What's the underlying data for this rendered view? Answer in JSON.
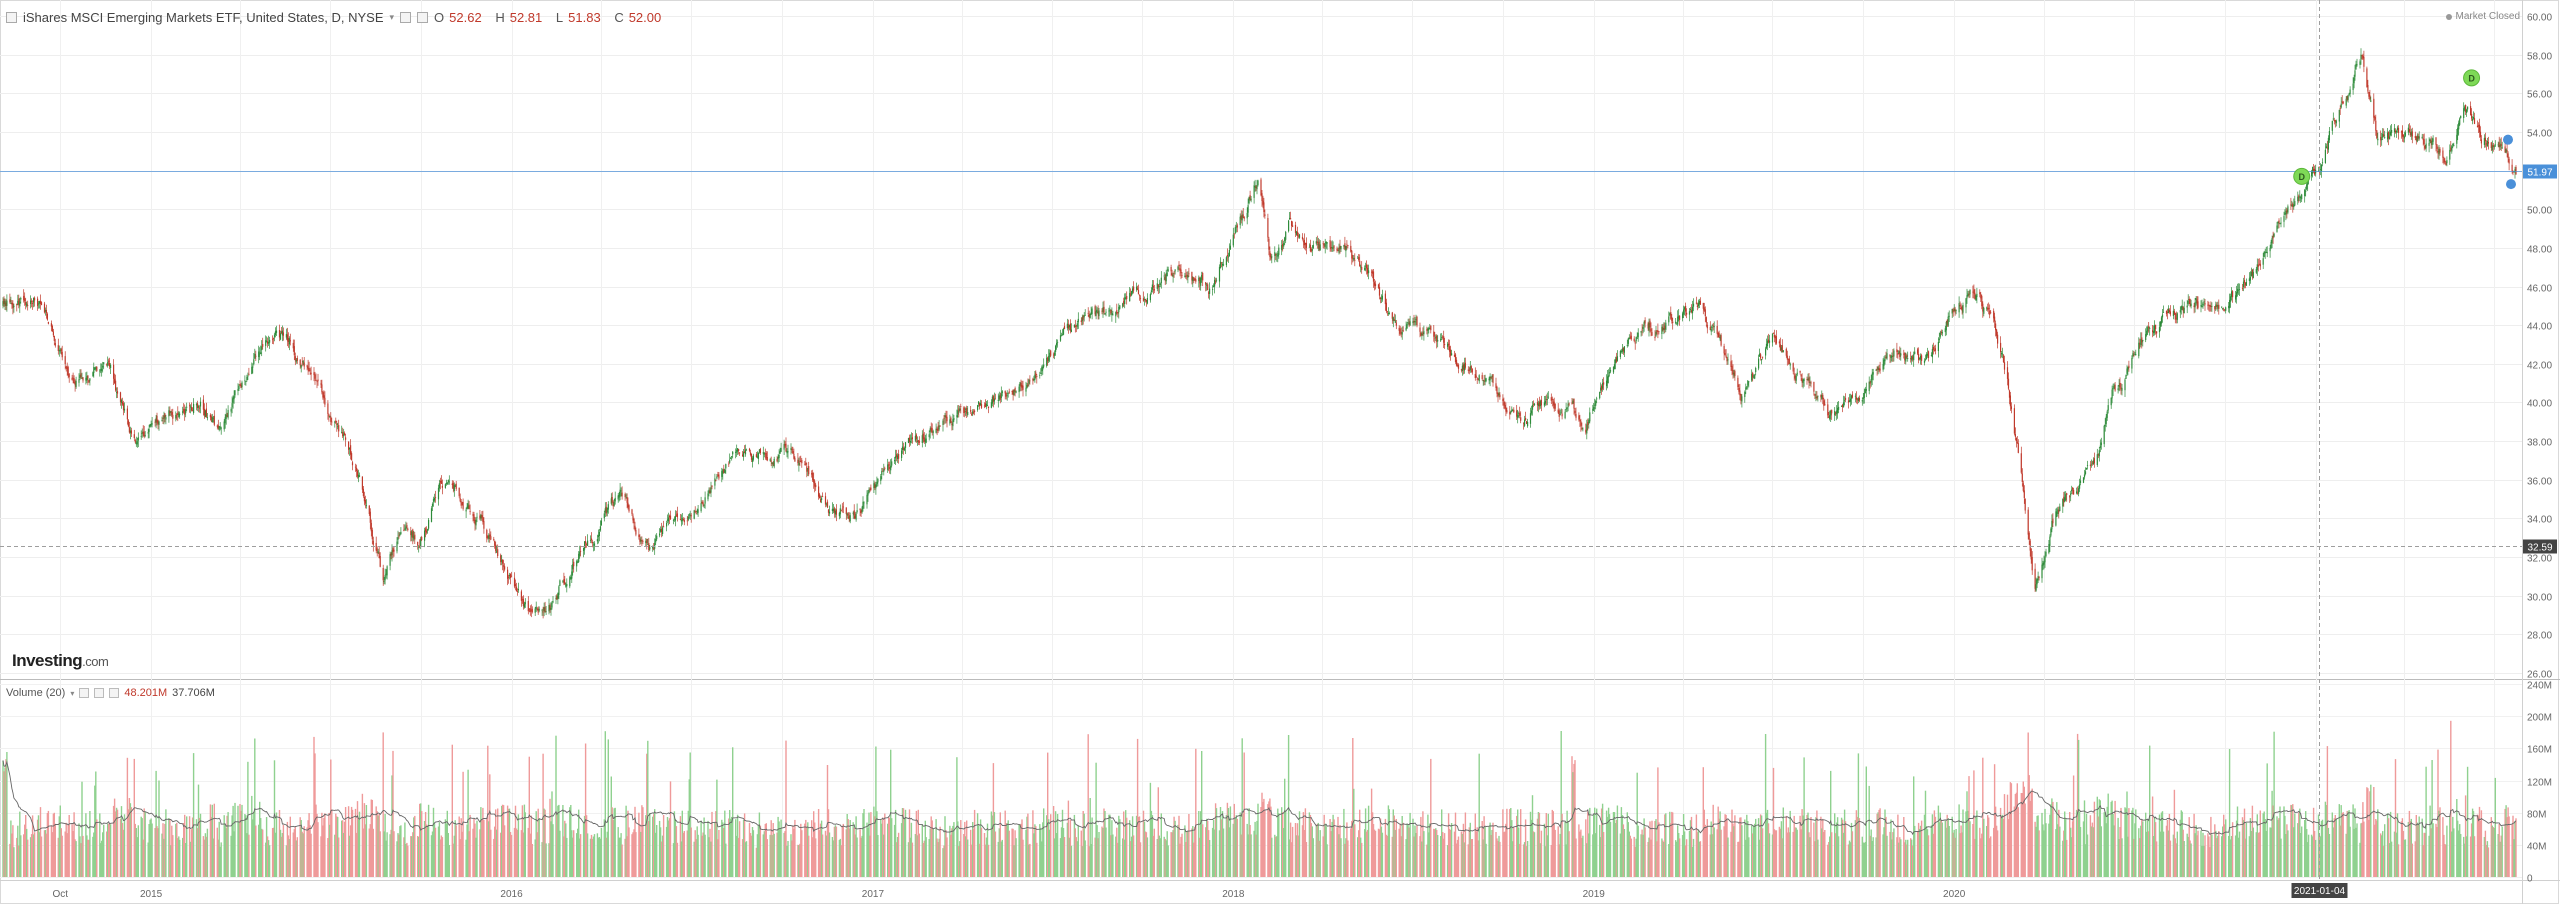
{
  "header": {
    "symbol_title": "iShares MSCI Emerging Markets ETF, United States, D, NYSE",
    "ohlc": [
      {
        "label": "O",
        "value": "52.62"
      },
      {
        "label": "H",
        "value": "52.81"
      },
      {
        "label": "L",
        "value": "51.83"
      },
      {
        "label": "C",
        "value": "52.00"
      }
    ],
    "market_status": "Market Closed"
  },
  "brand": {
    "name": "Investing",
    "suffix": ".com"
  },
  "volume_legend": {
    "label": "Volume (20)",
    "value1": "48.201M",
    "value2": "37.706M"
  },
  "price_labels": {
    "last_price": "51.97",
    "crosshair_price": "32.59",
    "crosshair_date": "2021-01-04"
  },
  "colors": {
    "up": "#2e8b3a",
    "down": "#c0392b",
    "volume_up": "#8fd18f",
    "volume_down": "#ef9a9a",
    "price_tag": "#4a90d9",
    "marker_d": "#7ed957"
  },
  "chart_data": {
    "type": "candlestick",
    "title": "iShares MSCI Emerging Markets ETF, United States, D, NYSE",
    "price_axis": {
      "min": 26,
      "max": 60,
      "ticks": [
        "26.00",
        "28.00",
        "30.00",
        "32.00",
        "34.00",
        "36.00",
        "38.00",
        "40.00",
        "42.00",
        "44.00",
        "46.00",
        "48.00",
        "50.00",
        "52.00",
        "54.00",
        "56.00",
        "58.00",
        "60.00"
      ]
    },
    "volume_axis": {
      "min": 0,
      "max": 240,
      "unit": "M",
      "ticks": [
        "0",
        "40M",
        "80M",
        "120M",
        "160M",
        "200M",
        "240M"
      ]
    },
    "x_labels": [
      {
        "label": "Oct",
        "date": "2014-10-01"
      },
      {
        "label": "2015",
        "date": "2015-01-01"
      },
      {
        "label": "2016",
        "date": "2016-01-01"
      },
      {
        "label": "2017",
        "date": "2017-01-01"
      },
      {
        "label": "2018",
        "date": "2018-01-01"
      },
      {
        "label": "2019",
        "date": "2019-01-01"
      },
      {
        "label": "2020",
        "date": "2020-01-01"
      }
    ],
    "date_range": [
      "2014-08-04",
      "2021-07-23"
    ],
    "price_path": [
      {
        "date": "2014-08-04",
        "close": 45.0
      },
      {
        "date": "2014-09-05",
        "close": 45.5
      },
      {
        "date": "2014-10-15",
        "close": 41.2
      },
      {
        "date": "2014-11-20",
        "close": 42.0
      },
      {
        "date": "2014-12-16",
        "close": 37.8
      },
      {
        "date": "2015-01-20",
        "close": 39.5
      },
      {
        "date": "2015-02-20",
        "close": 40.3
      },
      {
        "date": "2015-03-12",
        "close": 38.3
      },
      {
        "date": "2015-04-27",
        "close": 43.6
      },
      {
        "date": "2015-05-25",
        "close": 42.8
      },
      {
        "date": "2015-06-25",
        "close": 40.2
      },
      {
        "date": "2015-07-27",
        "close": 36.9
      },
      {
        "date": "2015-08-24",
        "close": 31.3
      },
      {
        "date": "2015-09-07",
        "close": 33.0
      },
      {
        "date": "2015-09-28",
        "close": 32.5
      },
      {
        "date": "2015-10-22",
        "close": 35.9
      },
      {
        "date": "2015-11-20",
        "close": 34.8
      },
      {
        "date": "2015-12-14",
        "close": 32.8
      },
      {
        "date": "2016-01-21",
        "close": 28.5
      },
      {
        "date": "2016-02-12",
        "close": 29.5
      },
      {
        "date": "2016-03-15",
        "close": 32.8
      },
      {
        "date": "2016-04-20",
        "close": 35.0
      },
      {
        "date": "2016-05-20",
        "close": 32.6
      },
      {
        "date": "2016-06-24",
        "close": 34.3
      },
      {
        "date": "2016-07-25",
        "close": 36.0
      },
      {
        "date": "2016-08-20",
        "close": 37.3
      },
      {
        "date": "2016-09-20",
        "close": 37.2
      },
      {
        "date": "2016-10-20",
        "close": 37.2
      },
      {
        "date": "2016-11-15",
        "close": 34.6
      },
      {
        "date": "2016-12-20",
        "close": 34.1
      },
      {
        "date": "2017-01-20",
        "close": 36.9
      },
      {
        "date": "2017-03-01",
        "close": 38.9
      },
      {
        "date": "2017-04-10",
        "close": 39.2
      },
      {
        "date": "2017-05-15",
        "close": 40.6
      },
      {
        "date": "2017-06-15",
        "close": 41.2
      },
      {
        "date": "2017-07-15",
        "close": 43.5
      },
      {
        "date": "2017-08-15",
        "close": 44.2
      },
      {
        "date": "2017-09-15",
        "close": 45.6
      },
      {
        "date": "2017-10-15",
        "close": 46.3
      },
      {
        "date": "2017-11-15",
        "close": 46.5
      },
      {
        "date": "2017-12-10",
        "close": 46.0
      },
      {
        "date": "2018-01-26",
        "close": 51.8
      },
      {
        "date": "2018-02-08",
        "close": 47.3
      },
      {
        "date": "2018-02-26",
        "close": 49.5
      },
      {
        "date": "2018-03-20",
        "close": 48.2
      },
      {
        "date": "2018-04-16",
        "close": 48.1
      },
      {
        "date": "2018-05-15",
        "close": 46.8
      },
      {
        "date": "2018-06-15",
        "close": 44.0
      },
      {
        "date": "2018-07-15",
        "close": 43.5
      },
      {
        "date": "2018-08-15",
        "close": 42.4
      },
      {
        "date": "2018-09-10",
        "close": 41.6
      },
      {
        "date": "2018-10-25",
        "close": 39.3
      },
      {
        "date": "2018-11-15",
        "close": 40.5
      },
      {
        "date": "2018-12-24",
        "close": 38.9
      },
      {
        "date": "2019-02-05",
        "close": 43.5
      },
      {
        "date": "2019-04-17",
        "close": 44.8
      },
      {
        "date": "2019-05-30",
        "close": 40.4
      },
      {
        "date": "2019-07-03",
        "close": 43.3
      },
      {
        "date": "2019-08-26",
        "close": 39.3
      },
      {
        "date": "2019-10-01",
        "close": 40.5
      },
      {
        "date": "2019-11-01",
        "close": 42.4
      },
      {
        "date": "2019-12-03",
        "close": 42.0
      },
      {
        "date": "2020-01-17",
        "close": 46.1
      },
      {
        "date": "2020-02-10",
        "close": 44.0
      },
      {
        "date": "2020-02-24",
        "close": 41.7
      },
      {
        "date": "2020-03-23",
        "close": 30.7
      },
      {
        "date": "2020-04-15",
        "close": 34.5
      },
      {
        "date": "2020-05-20",
        "close": 36.0
      },
      {
        "date": "2020-06-10",
        "close": 40.5
      },
      {
        "date": "2020-07-10",
        "close": 43.4
      },
      {
        "date": "2020-08-15",
        "close": 44.5
      },
      {
        "date": "2020-09-15",
        "close": 45.2
      },
      {
        "date": "2020-10-15",
        "close": 45.4
      },
      {
        "date": "2020-11-15",
        "close": 48.3
      },
      {
        "date": "2020-12-15",
        "close": 51.3
      },
      {
        "date": "2021-01-04",
        "close": 52.5
      },
      {
        "date": "2021-01-20",
        "close": 54.8
      },
      {
        "date": "2021-02-17",
        "close": 58.3
      },
      {
        "date": "2021-03-05",
        "close": 53.5
      },
      {
        "date": "2021-03-30",
        "close": 53.8
      },
      {
        "date": "2021-04-20",
        "close": 54.2
      },
      {
        "date": "2021-05-13",
        "close": 52.5
      },
      {
        "date": "2021-06-01",
        "close": 55.3
      },
      {
        "date": "2021-06-18",
        "close": 53.6
      },
      {
        "date": "2021-07-08",
        "close": 53.5
      },
      {
        "date": "2021-07-23",
        "close": 52.0
      }
    ],
    "markers": [
      {
        "date": "2020-12-18",
        "price": 51.7,
        "label": "D",
        "type": "dividend"
      },
      {
        "date": "2021-06-08",
        "price": 56.8,
        "label": "D",
        "type": "dividend"
      }
    ],
    "last_price": 51.97
  }
}
